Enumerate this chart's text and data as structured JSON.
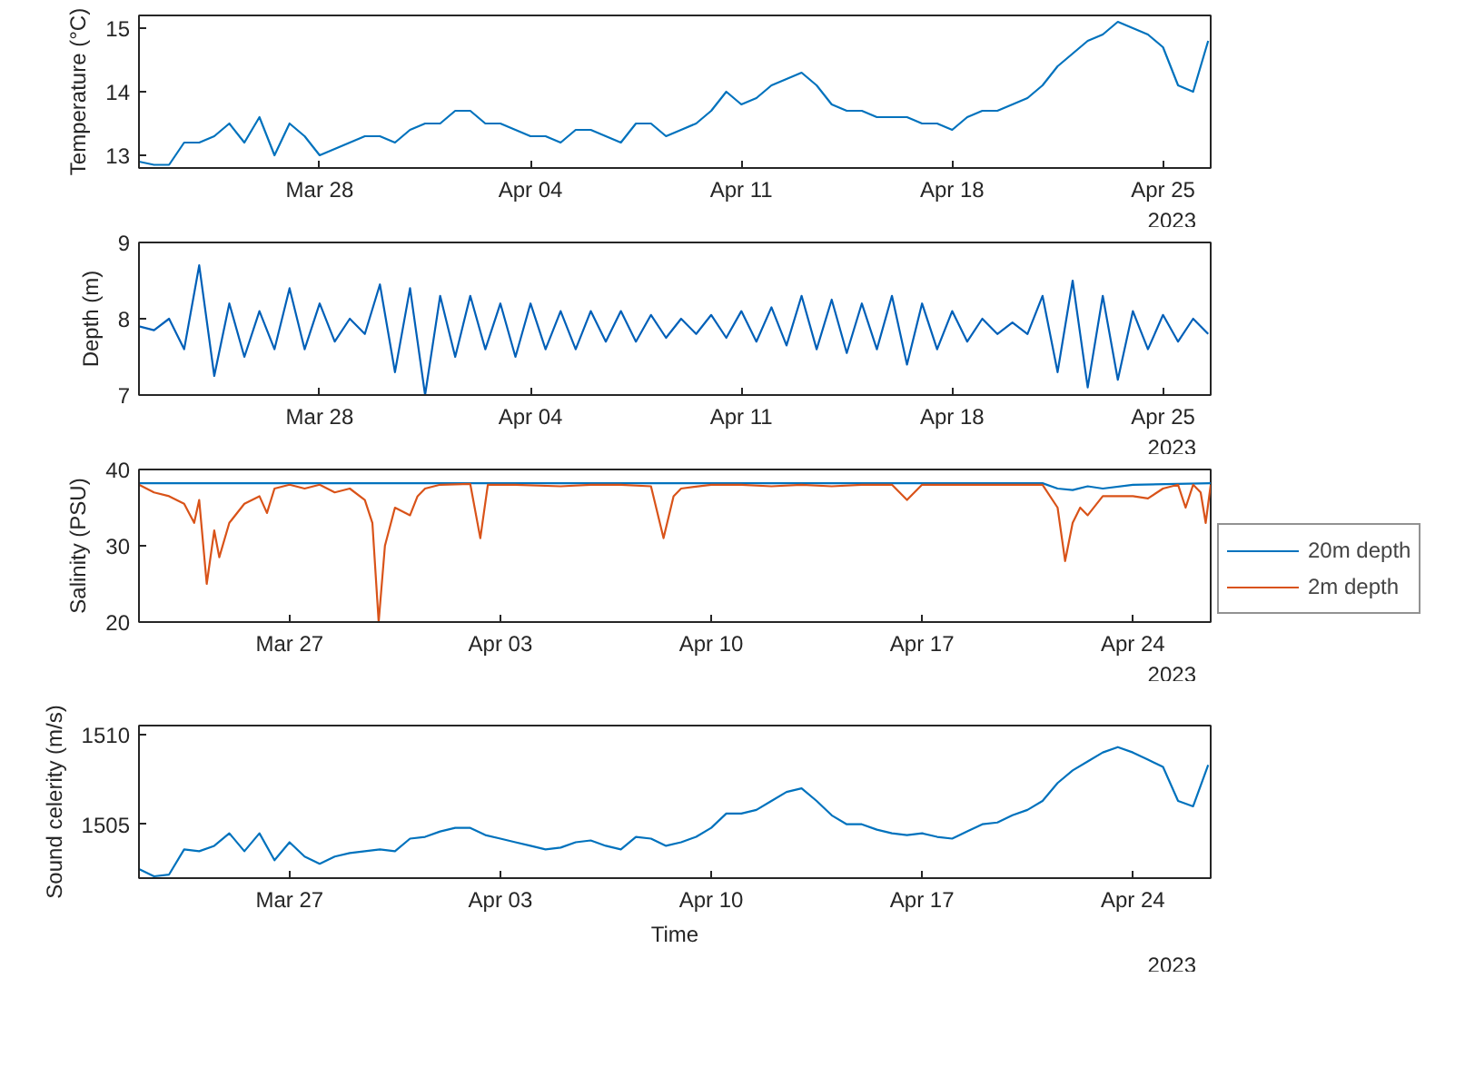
{
  "chart_data": [
    {
      "type": "line",
      "ylabel": "Temperature (°C)",
      "annotations": [
        "2023"
      ],
      "x": [
        "2023-03-22T00:00",
        "2023-03-22T12:00",
        "2023-03-23T00:00",
        "2023-03-23T12:00",
        "2023-03-24T00:00",
        "2023-03-24T12:00",
        "2023-03-25T00:00",
        "2023-03-25T12:00",
        "2023-03-26T00:00",
        "2023-03-26T12:00",
        "2023-03-27T00:00",
        "2023-03-27T12:00",
        "2023-03-28T00:00",
        "2023-03-28T12:00",
        "2023-03-29T00:00",
        "2023-03-29T12:00",
        "2023-03-30T00:00",
        "2023-03-30T12:00",
        "2023-03-31T00:00",
        "2023-03-31T12:00",
        "2023-04-01T00:00",
        "2023-04-01T12:00",
        "2023-04-02T00:00",
        "2023-04-02T12:00",
        "2023-04-03T00:00",
        "2023-04-03T12:00",
        "2023-04-04T00:00",
        "2023-04-04T12:00",
        "2023-04-05T00:00",
        "2023-04-05T12:00",
        "2023-04-06T00:00",
        "2023-04-06T12:00",
        "2023-04-07T00:00",
        "2023-04-07T12:00",
        "2023-04-08T00:00",
        "2023-04-08T12:00",
        "2023-04-09T00:00",
        "2023-04-09T12:00",
        "2023-04-10T00:00",
        "2023-04-10T12:00",
        "2023-04-11T00:00",
        "2023-04-11T12:00",
        "2023-04-12T00:00",
        "2023-04-12T12:00",
        "2023-04-13T00:00",
        "2023-04-13T12:00",
        "2023-04-14T00:00",
        "2023-04-14T12:00",
        "2023-04-15T00:00",
        "2023-04-15T12:00",
        "2023-04-16T00:00",
        "2023-04-16T12:00",
        "2023-04-17T00:00",
        "2023-04-17T12:00",
        "2023-04-18T00:00",
        "2023-04-18T12:00",
        "2023-04-19T00:00",
        "2023-04-19T12:00",
        "2023-04-20T00:00",
        "2023-04-20T12:00",
        "2023-04-21T00:00",
        "2023-04-21T12:00",
        "2023-04-22T00:00",
        "2023-04-22T12:00",
        "2023-04-23T00:00",
        "2023-04-23T12:00",
        "2023-04-24T00:00",
        "2023-04-24T12:00",
        "2023-04-25T00:00",
        "2023-04-25T12:00",
        "2023-04-26T00:00",
        "2023-04-26T12:00"
      ],
      "series": [
        {
          "color": "#0072bd",
          "values": [
            12.9,
            12.85,
            12.85,
            13.2,
            13.2,
            13.3,
            13.5,
            13.2,
            13.6,
            13.0,
            13.5,
            13.3,
            13.0,
            13.1,
            13.2,
            13.3,
            13.3,
            13.2,
            13.4,
            13.5,
            13.5,
            13.7,
            13.7,
            13.5,
            13.5,
            13.4,
            13.3,
            13.3,
            13.2,
            13.4,
            13.4,
            13.3,
            13.2,
            13.5,
            13.5,
            13.3,
            13.4,
            13.5,
            13.7,
            14.0,
            13.8,
            13.9,
            14.1,
            14.2,
            14.3,
            14.1,
            13.8,
            13.7,
            13.7,
            13.6,
            13.6,
            13.6,
            13.5,
            13.5,
            13.4,
            13.6,
            13.7,
            13.7,
            13.8,
            13.9,
            14.1,
            14.4,
            14.6,
            14.8,
            14.9,
            15.1,
            15.0,
            14.9,
            14.7,
            14.1,
            14.0,
            14.8
          ]
        }
      ],
      "xlim": [
        "2023-03-22T00:00",
        "2023-04-26T14:00"
      ],
      "xticks": [
        {
          "value": "2023-03-28",
          "label": "Mar 28"
        },
        {
          "value": "2023-04-04",
          "label": "Apr 04"
        },
        {
          "value": "2023-04-11",
          "label": "Apr 11"
        },
        {
          "value": "2023-04-18",
          "label": "Apr 18"
        },
        {
          "value": "2023-04-25",
          "label": "Apr 25"
        }
      ],
      "ylim": [
        12.8,
        15.2
      ],
      "yticks": [
        13,
        14,
        15
      ],
      "grid": false,
      "legend": false
    },
    {
      "type": "line",
      "ylabel": "Depth (m)",
      "annotations": [
        "2023"
      ],
      "x": [
        "2023-03-22T00:00",
        "2023-03-22T12:00",
        "2023-03-23T00:00",
        "2023-03-23T12:00",
        "2023-03-24T00:00",
        "2023-03-24T12:00",
        "2023-03-25T00:00",
        "2023-03-25T12:00",
        "2023-03-26T00:00",
        "2023-03-26T12:00",
        "2023-03-27T00:00",
        "2023-03-27T12:00",
        "2023-03-28T00:00",
        "2023-03-28T12:00",
        "2023-03-29T00:00",
        "2023-03-29T12:00",
        "2023-03-30T00:00",
        "2023-03-30T12:00",
        "2023-03-31T00:00",
        "2023-03-31T12:00",
        "2023-04-01T00:00",
        "2023-04-01T12:00",
        "2023-04-02T00:00",
        "2023-04-02T12:00",
        "2023-04-03T00:00",
        "2023-04-03T12:00",
        "2023-04-04T00:00",
        "2023-04-04T12:00",
        "2023-04-05T00:00",
        "2023-04-05T12:00",
        "2023-04-06T00:00",
        "2023-04-06T12:00",
        "2023-04-07T00:00",
        "2023-04-07T12:00",
        "2023-04-08T00:00",
        "2023-04-08T12:00",
        "2023-04-09T00:00",
        "2023-04-09T12:00",
        "2023-04-10T00:00",
        "2023-04-10T12:00",
        "2023-04-11T00:00",
        "2023-04-11T12:00",
        "2023-04-12T00:00",
        "2023-04-12T12:00",
        "2023-04-13T00:00",
        "2023-04-13T12:00",
        "2023-04-14T00:00",
        "2023-04-14T12:00",
        "2023-04-15T00:00",
        "2023-04-15T12:00",
        "2023-04-16T00:00",
        "2023-04-16T12:00",
        "2023-04-17T00:00",
        "2023-04-17T12:00",
        "2023-04-18T00:00",
        "2023-04-18T12:00",
        "2023-04-19T00:00",
        "2023-04-19T12:00",
        "2023-04-20T00:00",
        "2023-04-20T12:00",
        "2023-04-21T00:00",
        "2023-04-21T12:00",
        "2023-04-22T00:00",
        "2023-04-22T12:00",
        "2023-04-23T00:00",
        "2023-04-23T12:00",
        "2023-04-24T00:00",
        "2023-04-24T12:00",
        "2023-04-25T00:00",
        "2023-04-25T12:00",
        "2023-04-26T00:00",
        "2023-04-26T12:00"
      ],
      "series": [
        {
          "color": "#0060b8",
          "values": [
            7.9,
            7.85,
            8.0,
            7.6,
            8.7,
            7.25,
            8.2,
            7.5,
            8.1,
            7.6,
            8.4,
            7.6,
            8.2,
            7.7,
            8.0,
            7.8,
            8.45,
            7.3,
            8.4,
            7.0,
            8.3,
            7.5,
            8.3,
            7.6,
            8.2,
            7.5,
            8.2,
            7.6,
            8.1,
            7.6,
            8.1,
            7.7,
            8.1,
            7.7,
            8.05,
            7.75,
            8.0,
            7.8,
            8.05,
            7.75,
            8.1,
            7.7,
            8.15,
            7.65,
            8.3,
            7.6,
            8.25,
            7.55,
            8.2,
            7.6,
            8.3,
            7.4,
            8.2,
            7.6,
            8.1,
            7.7,
            8.0,
            7.8,
            7.95,
            7.8,
            8.3,
            7.3,
            8.5,
            7.1,
            8.3,
            7.2,
            8.1,
            7.6,
            8.05,
            7.7,
            8.0,
            7.8
          ]
        }
      ],
      "xlim": [
        "2023-03-22T00:00",
        "2023-04-26T14:00"
      ],
      "xticks": [
        {
          "value": "2023-03-28",
          "label": "Mar 28"
        },
        {
          "value": "2023-04-04",
          "label": "Apr 04"
        },
        {
          "value": "2023-04-11",
          "label": "Apr 11"
        },
        {
          "value": "2023-04-18",
          "label": "Apr 18"
        },
        {
          "value": "2023-04-25",
          "label": "Apr 25"
        }
      ],
      "ylim": [
        7,
        9
      ],
      "yticks": [
        7,
        8,
        9
      ],
      "grid": false,
      "legend": false
    },
    {
      "type": "line",
      "ylabel": "Salinity (PSU)",
      "annotations": [
        "2023"
      ],
      "series": [
        {
          "name": "20m depth",
          "color": "#0072bd",
          "x": [
            "2023-03-22T00:00",
            "2023-03-28T00:00",
            "2023-04-05T00:00",
            "2023-04-12T00:00",
            "2023-04-18T00:00",
            "2023-04-21T00:00",
            "2023-04-21T12:00",
            "2023-04-22T00:00",
            "2023-04-22T12:00",
            "2023-04-23T00:00",
            "2023-04-24T00:00",
            "2023-04-26T14:00"
          ],
          "values": [
            38.2,
            38.2,
            38.2,
            38.2,
            38.2,
            38.2,
            37.5,
            37.3,
            37.8,
            37.5,
            38.0,
            38.2
          ]
        },
        {
          "name": "2m depth",
          "color": "#d95319",
          "x": [
            "2023-03-22T00:00",
            "2023-03-22T12:00",
            "2023-03-23T00:00",
            "2023-03-23T12:00",
            "2023-03-23T20:00",
            "2023-03-24T00:00",
            "2023-03-24T06:00",
            "2023-03-24T12:00",
            "2023-03-24T16:00",
            "2023-03-25T00:00",
            "2023-03-25T12:00",
            "2023-03-26T00:00",
            "2023-03-26T06:00",
            "2023-03-26T12:00",
            "2023-03-27T00:00",
            "2023-03-27T12:00",
            "2023-03-28T00:00",
            "2023-03-28T12:00",
            "2023-03-29T00:00",
            "2023-03-29T12:00",
            "2023-03-29T18:00",
            "2023-03-29T23:00",
            "2023-03-30T04:00",
            "2023-03-30T12:00",
            "2023-03-31T00:00",
            "2023-03-31T06:00",
            "2023-03-31T12:00",
            "2023-04-01T00:00",
            "2023-04-02T00:00",
            "2023-04-02T08:00",
            "2023-04-02T14:00",
            "2023-04-03T12:00",
            "2023-04-05T00:00",
            "2023-04-06T00:00",
            "2023-04-07T00:00",
            "2023-04-08T00:00",
            "2023-04-08T10:00",
            "2023-04-08T18:00",
            "2023-04-09T00:00",
            "2023-04-10T00:00",
            "2023-04-11T00:00",
            "2023-04-12T00:00",
            "2023-04-13T00:00",
            "2023-04-14T00:00",
            "2023-04-15T00:00",
            "2023-04-16T00:00",
            "2023-04-16T12:00",
            "2023-04-17T00:00",
            "2023-04-18T00:00",
            "2023-04-19T00:00",
            "2023-04-20T00:00",
            "2023-04-21T00:00",
            "2023-04-21T12:00",
            "2023-04-21T18:00",
            "2023-04-22T00:00",
            "2023-04-22T06:00",
            "2023-04-22T12:00",
            "2023-04-23T00:00",
            "2023-04-24T00:00",
            "2023-04-24T12:00",
            "2023-04-25T00:00",
            "2023-04-25T12:00",
            "2023-04-25T18:00",
            "2023-04-26T00:00",
            "2023-04-26T06:00",
            "2023-04-26T10:00",
            "2023-04-26T14:00"
          ],
          "values": [
            38,
            37,
            36.5,
            35.5,
            33,
            36,
            25,
            32,
            28.5,
            33,
            35.5,
            36.5,
            34.3,
            37.5,
            38,
            37.5,
            38,
            37,
            37.5,
            36,
            33,
            20,
            30,
            35,
            34,
            36.5,
            37.5,
            38,
            38.1,
            31,
            38,
            38,
            37.8,
            38,
            38,
            37.8,
            31,
            36.5,
            37.5,
            38,
            38,
            37.8,
            38,
            37.8,
            38,
            38,
            36,
            38,
            38,
            38,
            38,
            38,
            35,
            28,
            33,
            35,
            34,
            36.5,
            36.5,
            36.2,
            37.5,
            38,
            35,
            38,
            37,
            33,
            38
          ]
        }
      ],
      "xlim": [
        "2023-03-22T00:00",
        "2023-04-26T14:00"
      ],
      "xticks": [
        {
          "value": "2023-03-27",
          "label": "Mar 27"
        },
        {
          "value": "2023-04-03",
          "label": "Apr 03"
        },
        {
          "value": "2023-04-10",
          "label": "Apr 10"
        },
        {
          "value": "2023-04-17",
          "label": "Apr 17"
        },
        {
          "value": "2023-04-24",
          "label": "Apr 24"
        }
      ],
      "ylim": [
        20,
        40
      ],
      "yticks": [
        20,
        30,
        40
      ],
      "grid": false,
      "legend": "right"
    },
    {
      "type": "line",
      "ylabel": "Sound celerity (m/s)",
      "xlabel": "Time",
      "annotations": [
        "2023"
      ],
      "x": [
        "2023-03-22T00:00",
        "2023-03-22T12:00",
        "2023-03-23T00:00",
        "2023-03-23T12:00",
        "2023-03-24T00:00",
        "2023-03-24T12:00",
        "2023-03-25T00:00",
        "2023-03-25T12:00",
        "2023-03-26T00:00",
        "2023-03-26T12:00",
        "2023-03-27T00:00",
        "2023-03-27T12:00",
        "2023-03-28T00:00",
        "2023-03-28T12:00",
        "2023-03-29T00:00",
        "2023-03-29T12:00",
        "2023-03-30T00:00",
        "2023-03-30T12:00",
        "2023-03-31T00:00",
        "2023-03-31T12:00",
        "2023-04-01T00:00",
        "2023-04-01T12:00",
        "2023-04-02T00:00",
        "2023-04-02T12:00",
        "2023-04-03T00:00",
        "2023-04-03T12:00",
        "2023-04-04T00:00",
        "2023-04-04T12:00",
        "2023-04-05T00:00",
        "2023-04-05T12:00",
        "2023-04-06T00:00",
        "2023-04-06T12:00",
        "2023-04-07T00:00",
        "2023-04-07T12:00",
        "2023-04-08T00:00",
        "2023-04-08T12:00",
        "2023-04-09T00:00",
        "2023-04-09T12:00",
        "2023-04-10T00:00",
        "2023-04-10T12:00",
        "2023-04-11T00:00",
        "2023-04-11T12:00",
        "2023-04-12T00:00",
        "2023-04-12T12:00",
        "2023-04-13T00:00",
        "2023-04-13T12:00",
        "2023-04-14T00:00",
        "2023-04-14T12:00",
        "2023-04-15T00:00",
        "2023-04-15T12:00",
        "2023-04-16T00:00",
        "2023-04-16T12:00",
        "2023-04-17T00:00",
        "2023-04-17T12:00",
        "2023-04-18T00:00",
        "2023-04-18T12:00",
        "2023-04-19T00:00",
        "2023-04-19T12:00",
        "2023-04-20T00:00",
        "2023-04-20T12:00",
        "2023-04-21T00:00",
        "2023-04-21T12:00",
        "2023-04-22T00:00",
        "2023-04-22T12:00",
        "2023-04-23T00:00",
        "2023-04-23T12:00",
        "2023-04-24T00:00",
        "2023-04-24T12:00",
        "2023-04-25T00:00",
        "2023-04-25T12:00",
        "2023-04-26T00:00",
        "2023-04-26T12:00"
      ],
      "series": [
        {
          "color": "#0072bd",
          "values": [
            1502.5,
            1502.1,
            1502.2,
            1503.6,
            1503.5,
            1503.8,
            1504.5,
            1503.5,
            1504.5,
            1503.0,
            1504.0,
            1503.2,
            1502.8,
            1503.2,
            1503.4,
            1503.5,
            1503.6,
            1503.5,
            1504.2,
            1504.3,
            1504.6,
            1504.8,
            1504.8,
            1504.4,
            1504.2,
            1504.0,
            1503.8,
            1503.6,
            1503.7,
            1504.0,
            1504.1,
            1503.8,
            1503.6,
            1504.3,
            1504.2,
            1503.8,
            1504.0,
            1504.3,
            1504.8,
            1505.6,
            1505.6,
            1505.8,
            1506.3,
            1506.8,
            1507.0,
            1506.3,
            1505.5,
            1505.0,
            1505.0,
            1504.7,
            1504.5,
            1504.4,
            1504.5,
            1504.3,
            1504.2,
            1504.6,
            1505.0,
            1505.1,
            1505.5,
            1505.8,
            1506.3,
            1507.3,
            1508.0,
            1508.5,
            1509.0,
            1509.3,
            1509.0,
            1508.6,
            1508.2,
            1506.3,
            1506.0,
            1508.3
          ]
        }
      ],
      "xlim": [
        "2023-03-22T00:00",
        "2023-04-26T14:00"
      ],
      "xticks": [
        {
          "value": "2023-03-27",
          "label": "Mar 27"
        },
        {
          "value": "2023-04-03",
          "label": "Apr 03"
        },
        {
          "value": "2023-04-10",
          "label": "Apr 10"
        },
        {
          "value": "2023-04-17",
          "label": "Apr 17"
        },
        {
          "value": "2023-04-24",
          "label": "Apr 24"
        }
      ],
      "ylim": [
        1502,
        1510.5
      ],
      "yticks": [
        1505,
        1510
      ],
      "grid": false,
      "legend": false
    }
  ]
}
